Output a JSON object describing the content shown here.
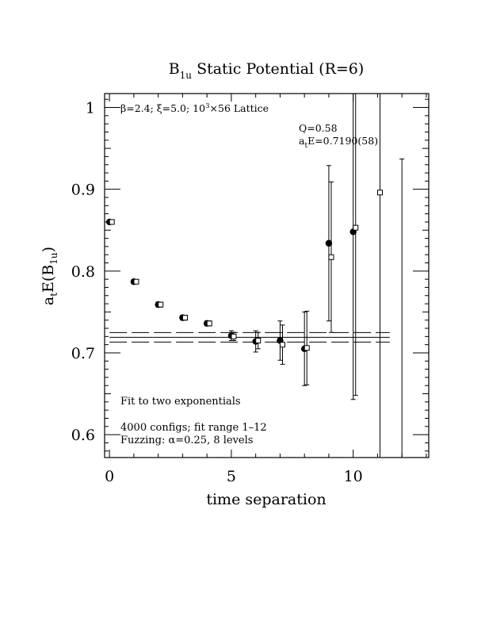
{
  "chart_data": {
    "type": "scatter",
    "title": "B",
    "title_sub": "1u",
    "title_rest": " Static Potential (R=6)",
    "xlabel": "time separation",
    "ylabel": "a",
    "ylabel_t": "t",
    "ylabel_mid": "E(B",
    "ylabel_sub": "1u",
    "ylabel_end": ")",
    "xlim": [
      -0.2,
      13.1
    ],
    "ylim": [
      0.572,
      1.017
    ],
    "x_ticks": [
      0,
      5,
      10
    ],
    "y_ticks": [
      0.6,
      0.7,
      0.8,
      0.9,
      1
    ],
    "x_tick_labels": [
      "0",
      "5",
      "10"
    ],
    "y_tick_labels": [
      "0.6",
      "0.7",
      "0.8",
      "0.9",
      "1"
    ],
    "annotations": {
      "lattice": {
        "beta": "β=2.4; ξ=5.0; 10",
        "sup": "3",
        "rest": "×56 Lattice"
      },
      "q": "Q=0.58",
      "fit_a": "a",
      "fit_t": "t",
      "fit_rest": "E=0.7190(58)",
      "method": "Fit to two exponentials",
      "configs": "4000 configs; fit range 1–12",
      "fuzzing": "Fuzzing: α=0.25, 8 levels"
    },
    "fit_band": {
      "center": 0.719,
      "error": 0.0058,
      "x_range": [
        0,
        11.5
      ]
    },
    "series": [
      {
        "marker": "filled-circle",
        "x": [
          0,
          1,
          2,
          3,
          4,
          5,
          6,
          7,
          8,
          9,
          10
        ],
        "y": [
          0.86,
          0.787,
          0.759,
          0.743,
          0.736,
          0.721,
          0.714,
          0.715,
          0.705,
          0.834,
          0.848
        ],
        "err": [
          0.001,
          0.002,
          0.003,
          0.003,
          0.003,
          0.006,
          0.013,
          0.024,
          0.045,
          0.095,
          0.205
        ]
      },
      {
        "marker": "open-square",
        "x": [
          0.1,
          1.1,
          2.1,
          3.1,
          4.1,
          5.1,
          6.1,
          7.1,
          8.1,
          9.1,
          10.1,
          11.1
        ],
        "y": [
          0.86,
          0.787,
          0.759,
          0.743,
          0.736,
          0.72,
          0.715,
          0.71,
          0.706,
          0.817,
          0.853,
          0.896
        ],
        "err": [
          0.001,
          0.002,
          0.003,
          0.003,
          0.003,
          0.005,
          0.01,
          0.024,
          0.045,
          0.092,
          0.205,
          0.35
        ]
      }
    ],
    "extra_error_bars": [
      {
        "x": 12.0,
        "low": 0.572,
        "high": 0.937
      }
    ]
  }
}
